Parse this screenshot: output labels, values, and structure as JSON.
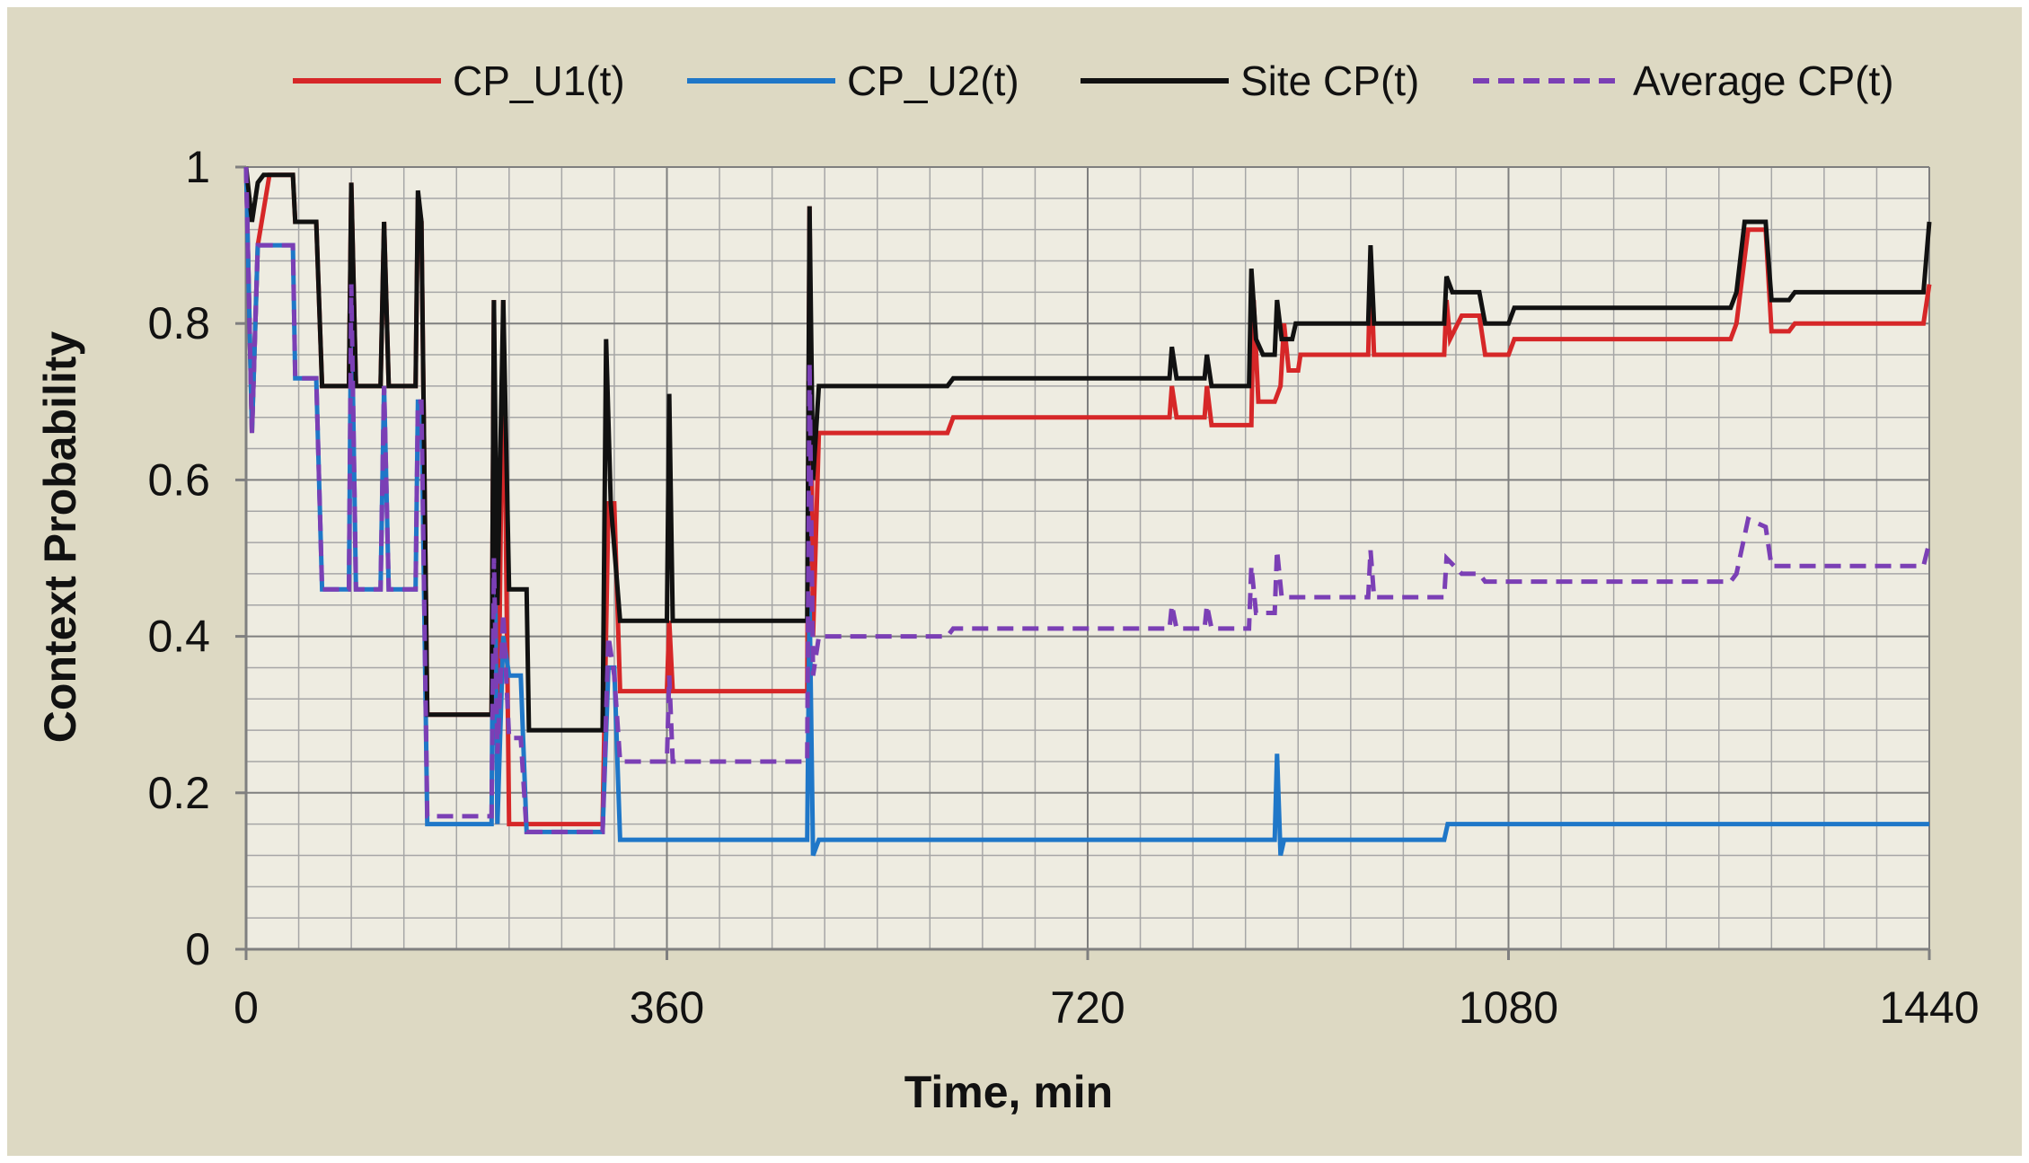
{
  "chart_data": {
    "type": "line",
    "title": "",
    "xlabel": "Time, min",
    "ylabel": "Context Probability",
    "xlim": [
      0,
      1440
    ],
    "ylim": [
      0,
      1
    ],
    "x_ticks": [
      0,
      360,
      720,
      1080,
      1440
    ],
    "x_tick_labels": [
      "0",
      "360",
      "720",
      "1080",
      "1440"
    ],
    "y_ticks": [
      0,
      0.2,
      0.4,
      0.6,
      0.8,
      1
    ],
    "y_tick_labels": [
      "0",
      "0.2",
      "0.4",
      "0.6",
      "0.8",
      "1"
    ],
    "grid": true,
    "legend_position": "top",
    "series": [
      {
        "name": "CP_U1(t)",
        "color": "#d62728",
        "dash": false,
        "points": [
          [
            0,
            1.0
          ],
          [
            5,
            0.66
          ],
          [
            10,
            0.9
          ],
          [
            20,
            0.99
          ],
          [
            40,
            0.99
          ],
          [
            42,
            0.93
          ],
          [
            60,
            0.93
          ],
          [
            65,
            0.72
          ],
          [
            88,
            0.72
          ],
          [
            90,
            0.98
          ],
          [
            94,
            0.72
          ],
          [
            115,
            0.72
          ],
          [
            118,
            0.93
          ],
          [
            122,
            0.72
          ],
          [
            145,
            0.72
          ],
          [
            147,
            0.96
          ],
          [
            150,
            0.93
          ],
          [
            155,
            0.3
          ],
          [
            210,
            0.3
          ],
          [
            212,
            0.83
          ],
          [
            215,
            0.16
          ],
          [
            220,
            0.83
          ],
          [
            225,
            0.16
          ],
          [
            235,
            0.16
          ],
          [
            240,
            0.16
          ],
          [
            300,
            0.16
          ],
          [
            305,
            0.16
          ],
          [
            310,
            0.57
          ],
          [
            315,
            0.57
          ],
          [
            320,
            0.33
          ],
          [
            360,
            0.33
          ],
          [
            362,
            0.42
          ],
          [
            365,
            0.33
          ],
          [
            480,
            0.33
          ],
          [
            482,
            0.95
          ],
          [
            485,
            0.4
          ],
          [
            490,
            0.66
          ],
          [
            600,
            0.66
          ],
          [
            605,
            0.68
          ],
          [
            790,
            0.68
          ],
          [
            792,
            0.72
          ],
          [
            796,
            0.68
          ],
          [
            820,
            0.68
          ],
          [
            822,
            0.72
          ],
          [
            826,
            0.67
          ],
          [
            860,
            0.67
          ],
          [
            862,
            0.83
          ],
          [
            866,
            0.7
          ],
          [
            880,
            0.7
          ],
          [
            885,
            0.72
          ],
          [
            888,
            0.8
          ],
          [
            892,
            0.74
          ],
          [
            900,
            0.74
          ],
          [
            902,
            0.76
          ],
          [
            960,
            0.76
          ],
          [
            962,
            0.88
          ],
          [
            965,
            0.76
          ],
          [
            1025,
            0.76
          ],
          [
            1027,
            0.83
          ],
          [
            1030,
            0.78
          ],
          [
            1040,
            0.81
          ],
          [
            1055,
            0.81
          ],
          [
            1060,
            0.76
          ],
          [
            1080,
            0.76
          ],
          [
            1085,
            0.78
          ],
          [
            1270,
            0.78
          ],
          [
            1275,
            0.8
          ],
          [
            1285,
            0.92
          ],
          [
            1300,
            0.92
          ],
          [
            1305,
            0.79
          ],
          [
            1320,
            0.79
          ],
          [
            1325,
            0.8
          ],
          [
            1435,
            0.8
          ],
          [
            1440,
            0.85
          ]
        ]
      },
      {
        "name": "CP_U2(t)",
        "color": "#1f77c8",
        "dash": false,
        "points": [
          [
            0,
            1.0
          ],
          [
            5,
            0.66
          ],
          [
            10,
            0.9
          ],
          [
            20,
            0.9
          ],
          [
            40,
            0.9
          ],
          [
            42,
            0.73
          ],
          [
            60,
            0.73
          ],
          [
            65,
            0.46
          ],
          [
            88,
            0.46
          ],
          [
            90,
            0.85
          ],
          [
            94,
            0.46
          ],
          [
            115,
            0.46
          ],
          [
            118,
            0.72
          ],
          [
            122,
            0.46
          ],
          [
            145,
            0.46
          ],
          [
            147,
            0.7
          ],
          [
            150,
            0.7
          ],
          [
            155,
            0.16
          ],
          [
            210,
            0.16
          ],
          [
            212,
            0.65
          ],
          [
            215,
            0.16
          ],
          [
            220,
            0.4
          ],
          [
            225,
            0.35
          ],
          [
            235,
            0.35
          ],
          [
            240,
            0.15
          ],
          [
            300,
            0.15
          ],
          [
            305,
            0.15
          ],
          [
            310,
            0.36
          ],
          [
            315,
            0.36
          ],
          [
            320,
            0.14
          ],
          [
            480,
            0.14
          ],
          [
            482,
            0.45
          ],
          [
            485,
            0.12
          ],
          [
            490,
            0.14
          ],
          [
            880,
            0.14
          ],
          [
            882,
            0.25
          ],
          [
            885,
            0.12
          ],
          [
            888,
            0.14
          ],
          [
            1025,
            0.14
          ],
          [
            1028,
            0.16
          ],
          [
            1440,
            0.16
          ]
        ]
      },
      {
        "name": "Site CP(t)",
        "color": "#111111",
        "dash": false,
        "points": [
          [
            0,
            1.0
          ],
          [
            5,
            0.93
          ],
          [
            10,
            0.98
          ],
          [
            15,
            0.99
          ],
          [
            40,
            0.99
          ],
          [
            42,
            0.93
          ],
          [
            60,
            0.93
          ],
          [
            65,
            0.72
          ],
          [
            88,
            0.72
          ],
          [
            90,
            0.98
          ],
          [
            94,
            0.72
          ],
          [
            115,
            0.72
          ],
          [
            118,
            0.93
          ],
          [
            122,
            0.72
          ],
          [
            145,
            0.72
          ],
          [
            147,
            0.97
          ],
          [
            150,
            0.93
          ],
          [
            155,
            0.3
          ],
          [
            210,
            0.3
          ],
          [
            212,
            0.83
          ],
          [
            215,
            0.44
          ],
          [
            220,
            0.83
          ],
          [
            225,
            0.46
          ],
          [
            240,
            0.46
          ],
          [
            242,
            0.28
          ],
          [
            305,
            0.28
          ],
          [
            308,
            0.78
          ],
          [
            312,
            0.57
          ],
          [
            320,
            0.42
          ],
          [
            360,
            0.42
          ],
          [
            362,
            0.71
          ],
          [
            365,
            0.42
          ],
          [
            480,
            0.42
          ],
          [
            482,
            0.95
          ],
          [
            485,
            0.6
          ],
          [
            490,
            0.72
          ],
          [
            600,
            0.72
          ],
          [
            605,
            0.73
          ],
          [
            790,
            0.73
          ],
          [
            792,
            0.77
          ],
          [
            796,
            0.73
          ],
          [
            820,
            0.73
          ],
          [
            822,
            0.76
          ],
          [
            826,
            0.72
          ],
          [
            858,
            0.72
          ],
          [
            860,
            0.87
          ],
          [
            864,
            0.78
          ],
          [
            870,
            0.76
          ],
          [
            880,
            0.76
          ],
          [
            882,
            0.83
          ],
          [
            886,
            0.78
          ],
          [
            895,
            0.78
          ],
          [
            898,
            0.8
          ],
          [
            960,
            0.8
          ],
          [
            962,
            0.9
          ],
          [
            965,
            0.8
          ],
          [
            1025,
            0.8
          ],
          [
            1027,
            0.86
          ],
          [
            1032,
            0.84
          ],
          [
            1055,
            0.84
          ],
          [
            1060,
            0.8
          ],
          [
            1080,
            0.8
          ],
          [
            1085,
            0.82
          ],
          [
            1270,
            0.82
          ],
          [
            1275,
            0.84
          ],
          [
            1282,
            0.93
          ],
          [
            1300,
            0.93
          ],
          [
            1305,
            0.83
          ],
          [
            1320,
            0.83
          ],
          [
            1325,
            0.84
          ],
          [
            1435,
            0.84
          ],
          [
            1440,
            0.93
          ]
        ]
      },
      {
        "name": "Average CP(t)",
        "color": "#7b3fb5",
        "dash": true,
        "points": [
          [
            0,
            1.0
          ],
          [
            5,
            0.66
          ],
          [
            10,
            0.9
          ],
          [
            20,
            0.9
          ],
          [
            40,
            0.9
          ],
          [
            42,
            0.73
          ],
          [
            60,
            0.73
          ],
          [
            65,
            0.46
          ],
          [
            88,
            0.46
          ],
          [
            90,
            0.85
          ],
          [
            94,
            0.46
          ],
          [
            115,
            0.46
          ],
          [
            118,
            0.72
          ],
          [
            122,
            0.46
          ],
          [
            145,
            0.46
          ],
          [
            147,
            0.7
          ],
          [
            150,
            0.7
          ],
          [
            155,
            0.17
          ],
          [
            210,
            0.17
          ],
          [
            212,
            0.5
          ],
          [
            215,
            0.25
          ],
          [
            220,
            0.43
          ],
          [
            225,
            0.27
          ],
          [
            235,
            0.27
          ],
          [
            240,
            0.15
          ],
          [
            300,
            0.15
          ],
          [
            305,
            0.15
          ],
          [
            310,
            0.4
          ],
          [
            315,
            0.35
          ],
          [
            320,
            0.24
          ],
          [
            360,
            0.24
          ],
          [
            362,
            0.35
          ],
          [
            365,
            0.24
          ],
          [
            480,
            0.24
          ],
          [
            482,
            0.75
          ],
          [
            485,
            0.35
          ],
          [
            490,
            0.4
          ],
          [
            600,
            0.4
          ],
          [
            605,
            0.41
          ],
          [
            790,
            0.41
          ],
          [
            792,
            0.44
          ],
          [
            796,
            0.41
          ],
          [
            820,
            0.41
          ],
          [
            822,
            0.44
          ],
          [
            826,
            0.41
          ],
          [
            858,
            0.41
          ],
          [
            860,
            0.49
          ],
          [
            864,
            0.43
          ],
          [
            880,
            0.43
          ],
          [
            882,
            0.51
          ],
          [
            886,
            0.45
          ],
          [
            960,
            0.45
          ],
          [
            962,
            0.51
          ],
          [
            965,
            0.45
          ],
          [
            1025,
            0.45
          ],
          [
            1027,
            0.5
          ],
          [
            1040,
            0.48
          ],
          [
            1055,
            0.48
          ],
          [
            1060,
            0.47
          ],
          [
            1080,
            0.47
          ],
          [
            1085,
            0.47
          ],
          [
            1270,
            0.47
          ],
          [
            1275,
            0.48
          ],
          [
            1285,
            0.55
          ],
          [
            1300,
            0.54
          ],
          [
            1305,
            0.49
          ],
          [
            1320,
            0.49
          ],
          [
            1325,
            0.49
          ],
          [
            1435,
            0.49
          ],
          [
            1440,
            0.52
          ]
        ]
      }
    ]
  }
}
